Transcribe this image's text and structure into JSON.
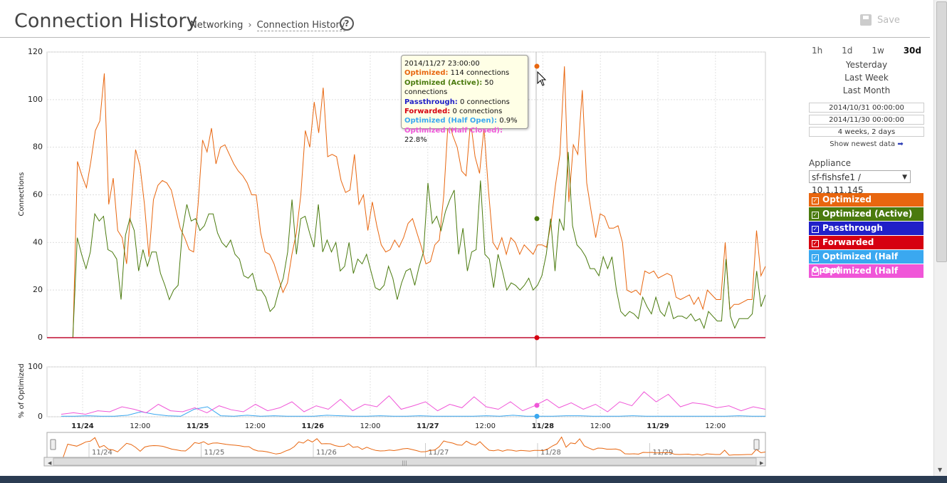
{
  "header": {
    "title": "Connection History",
    "breadcrumb": [
      "Networking",
      "Connection History"
    ],
    "help_label": "?",
    "save_label": "Save"
  },
  "side": {
    "ranges": [
      "1h",
      "1d",
      "1w",
      "30d"
    ],
    "active_range": "30d",
    "relative": [
      "Yesterday",
      "Last Week",
      "Last Month"
    ],
    "start": "2014/10/31 00:00:00",
    "end": "2014/11/30 00:00:00",
    "duration": "4 weeks, 2 days",
    "show_newest": "Show newest data",
    "appliance_label": "Appliance",
    "appliance_value": "sf-fishsfe1 / 10.1.11.145"
  },
  "legend": [
    {
      "label": "Optimized",
      "color": "#e8660f"
    },
    {
      "label": "Optimized (Active)",
      "color": "#4a7a0e"
    },
    {
      "label": "Passthrough",
      "color": "#2020c8"
    },
    {
      "label": "Forwarded",
      "color": "#d60010"
    },
    {
      "label": "Optimized (Half Open)",
      "color": "#3aa8f0"
    },
    {
      "label": "Optimized (Half Closed)",
      "color": "#f056d8"
    }
  ],
  "tooltip": {
    "time": "2014/11/27 23:00:00",
    "rows": [
      {
        "k": "Optimized:",
        "v": "114 connections",
        "color": "#e8660f"
      },
      {
        "k": "Optimized (Active):",
        "v": "50 connections",
        "color": "#4a7a0e"
      },
      {
        "k": "Passthrough:",
        "v": "0 connections",
        "color": "#2020c8"
      },
      {
        "k": "Forwarded:",
        "v": "0 connections",
        "color": "#d60010"
      },
      {
        "k": "Optimized (Half Open):",
        "v": "0.9%",
        "color": "#3aa8f0"
      },
      {
        "k": "Optimized (Half Closed):",
        "v": "22.8%",
        "color": "#f056d8"
      }
    ]
  },
  "chart_data": [
    {
      "type": "line",
      "ylabel": "Connections",
      "ylim": [
        0,
        120
      ],
      "yticks": [
        0,
        20,
        40,
        60,
        80,
        100,
        120
      ],
      "x_hours_start": "11/23 12:00",
      "x_step_hours": 1,
      "series": [
        {
          "name": "Optimized",
          "color": "#e8660f",
          "values": [
            0,
            0,
            0,
            74,
            68,
            63,
            74,
            87,
            91,
            111,
            56,
            67,
            45,
            42,
            31,
            55,
            79,
            72,
            56,
            34,
            58,
            64,
            66,
            65,
            62,
            54,
            46,
            42,
            37,
            36,
            56,
            83,
            78,
            88,
            73,
            80,
            81,
            77,
            73,
            70,
            68,
            65,
            60,
            60,
            44,
            36,
            35,
            31,
            25,
            19,
            23,
            35,
            44,
            60,
            87,
            80,
            99,
            86,
            105,
            76,
            77,
            76,
            66,
            61,
            62,
            77,
            56,
            60,
            45,
            57,
            47,
            39,
            36,
            37,
            41,
            38,
            42,
            48,
            50,
            44,
            38,
            31,
            32,
            39,
            41,
            60,
            92,
            85,
            80,
            70,
            68,
            91,
            76,
            69,
            88,
            62,
            40,
            37,
            42,
            35,
            42,
            40,
            35,
            39,
            37,
            35,
            39,
            39,
            38,
            48,
            64,
            77,
            114,
            57,
            81,
            77,
            104,
            65,
            53,
            42,
            52,
            51,
            46,
            46,
            47,
            40,
            20,
            19,
            20,
            18,
            28,
            27,
            28,
            25,
            26,
            27,
            26,
            17,
            16,
            17,
            18,
            14,
            17,
            12,
            20,
            18,
            16,
            16,
            40,
            12,
            14,
            14,
            15,
            16,
            16,
            45,
            26,
            30
          ]
        },
        {
          "name": "Optimized (Active)",
          "color": "#4a7a0e",
          "values": [
            0,
            0,
            0,
            42,
            35,
            29,
            36,
            52,
            49,
            51,
            37,
            36,
            33,
            16,
            43,
            50,
            45,
            28,
            37,
            30,
            36,
            36,
            27,
            22,
            16,
            20,
            22,
            45,
            56,
            49,
            50,
            45,
            47,
            52,
            52,
            44,
            40,
            38,
            41,
            35,
            33,
            26,
            25,
            27,
            20,
            20,
            17,
            11,
            13,
            20,
            25,
            36,
            58,
            35,
            50,
            51,
            44,
            38,
            56,
            36,
            41,
            36,
            40,
            28,
            30,
            40,
            27,
            33,
            31,
            35,
            28,
            21,
            20,
            22,
            30,
            25,
            16,
            23,
            28,
            29,
            22,
            30,
            36,
            65,
            48,
            51,
            45,
            53,
            58,
            62,
            35,
            46,
            28,
            36,
            37,
            66,
            35,
            33,
            21,
            35,
            28,
            20,
            23,
            22,
            20,
            22,
            25,
            20,
            22,
            26,
            35,
            50,
            28,
            50,
            45,
            78,
            47,
            39,
            37,
            34,
            29,
            29,
            26,
            34,
            29,
            34,
            20,
            11,
            9,
            11,
            10,
            8,
            17,
            13,
            10,
            17,
            11,
            9,
            15,
            8,
            9,
            9,
            8,
            10,
            7,
            8,
            4,
            11,
            9,
            7,
            7,
            33,
            9,
            4,
            8,
            8,
            8,
            10,
            28,
            13,
            18
          ]
        },
        {
          "name": "Passthrough",
          "color": "#2020c8",
          "values": [
            0
          ]
        },
        {
          "name": "Forwarded",
          "color": "#d60010",
          "values": [
            0
          ]
        }
      ]
    },
    {
      "type": "line",
      "ylabel": "% of Optimized",
      "ylim": [
        0,
        100
      ],
      "yticks": [
        0,
        100
      ],
      "xticks": [
        "11/24",
        "12:00",
        "11/25",
        "12:00",
        "11/26",
        "12:00",
        "11/27",
        "12:00",
        "11/28",
        "12:00",
        "11/29",
        "12:00"
      ],
      "series": [
        {
          "name": "Optimized (Half Open)",
          "color": "#3aa8f0",
          "values": [
            1,
            1,
            2,
            1,
            1,
            3,
            10,
            5,
            2,
            1,
            15,
            20,
            2,
            1,
            3,
            1,
            2,
            1,
            1,
            1,
            3,
            2,
            1,
            1,
            2,
            1,
            1,
            2,
            1,
            1,
            1,
            1,
            2,
            1,
            3,
            1,
            1,
            1,
            2,
            2,
            1,
            1,
            1,
            2,
            1,
            1,
            1,
            1,
            1,
            1,
            1,
            2,
            1,
            1
          ]
        },
        {
          "name": "Optimized (Half Closed)",
          "color": "#f056d8",
          "values": [
            5,
            8,
            5,
            12,
            10,
            20,
            15,
            8,
            25,
            12,
            10,
            18,
            8,
            22,
            14,
            10,
            25,
            12,
            18,
            30,
            10,
            22,
            15,
            35,
            12,
            25,
            20,
            42,
            15,
            22,
            30,
            12,
            25,
            18,
            40,
            20,
            15,
            30,
            12,
            22,
            35,
            18,
            28,
            15,
            25,
            10,
            30,
            22,
            50,
            30,
            45,
            20,
            28,
            25,
            18,
            22,
            12,
            20,
            15
          ]
        }
      ]
    },
    {
      "type": "area",
      "xticks": [
        "11/24",
        "11/25",
        "11/26",
        "11/27",
        "11/28",
        "11/29"
      ],
      "series": [
        {
          "name": "Optimized",
          "color": "#e8660f"
        }
      ]
    }
  ]
}
